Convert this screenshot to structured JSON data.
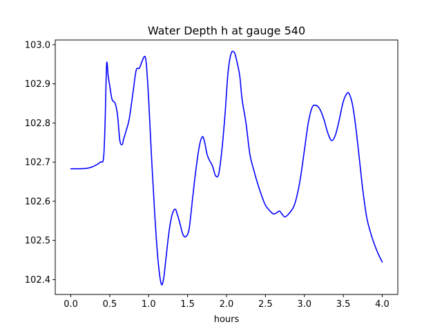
{
  "chart_data": {
    "type": "line",
    "title": "Water Depth h at gauge 540",
    "xlabel": "hours",
    "ylabel": "",
    "xlim": [
      -0.2,
      4.2
    ],
    "ylim": [
      102.362,
      103.012
    ],
    "x_ticks": [
      0.0,
      0.5,
      1.0,
      1.5,
      2.0,
      2.5,
      3.0,
      3.5,
      4.0
    ],
    "x_tick_labels": [
      "0.0",
      "0.5",
      "1.0",
      "1.5",
      "2.0",
      "2.5",
      "3.0",
      "3.5",
      "4.0"
    ],
    "y_ticks": [
      102.4,
      102.5,
      102.6,
      102.7,
      102.8,
      102.9,
      103.0
    ],
    "y_tick_labels": [
      "102.4",
      "102.5",
      "102.6",
      "102.7",
      "102.8",
      "102.9",
      "103.0"
    ],
    "grid": false,
    "series": [
      {
        "color": "#0000ff",
        "x": [
          0.0,
          0.2,
          0.3,
          0.38,
          0.42,
          0.44,
          0.46,
          0.48,
          0.5,
          0.53,
          0.57,
          0.6,
          0.63,
          0.66,
          0.68,
          0.71,
          0.75,
          0.8,
          0.84,
          0.88,
          0.92,
          0.95,
          0.97,
          1.0,
          1.04,
          1.08,
          1.12,
          1.16,
          1.19,
          1.22,
          1.26,
          1.3,
          1.34,
          1.37,
          1.4,
          1.44,
          1.48,
          1.52,
          1.56,
          1.6,
          1.65,
          1.69,
          1.72,
          1.75,
          1.78,
          1.82,
          1.86,
          1.9,
          1.94,
          1.98,
          2.02,
          2.06,
          2.1,
          2.13,
          2.17,
          2.2,
          2.25,
          2.3,
          2.35,
          2.4,
          2.45,
          2.5,
          2.56,
          2.6,
          2.64,
          2.68,
          2.71,
          2.75,
          2.8,
          2.86,
          2.9,
          2.95,
          3.0,
          3.05,
          3.1,
          3.15,
          3.2,
          3.25,
          3.3,
          3.35,
          3.4,
          3.45,
          3.5,
          3.55,
          3.58,
          3.62,
          3.66,
          3.7,
          3.75,
          3.8,
          3.85,
          3.9,
          3.95,
          4.0
        ],
        "y": [
          102.683,
          102.684,
          102.69,
          102.7,
          102.71,
          102.8,
          102.95,
          102.92,
          102.895,
          102.86,
          102.85,
          102.82,
          102.755,
          102.745,
          102.76,
          102.78,
          102.81,
          102.88,
          102.935,
          102.94,
          102.96,
          102.97,
          102.95,
          102.86,
          102.7,
          102.56,
          102.45,
          102.39,
          102.4,
          102.45,
          102.52,
          102.565,
          102.58,
          102.565,
          102.545,
          102.515,
          102.51,
          102.53,
          102.6,
          102.67,
          102.74,
          102.765,
          102.75,
          102.72,
          102.705,
          102.69,
          102.665,
          102.67,
          102.73,
          102.82,
          102.93,
          102.978,
          102.98,
          102.96,
          102.92,
          102.86,
          102.8,
          102.72,
          102.68,
          102.645,
          102.615,
          102.59,
          102.575,
          102.568,
          102.57,
          102.575,
          102.568,
          102.56,
          102.568,
          102.585,
          102.61,
          102.66,
          102.73,
          102.8,
          102.84,
          102.845,
          102.835,
          102.81,
          102.775,
          102.755,
          102.77,
          102.81,
          102.855,
          102.876,
          102.873,
          102.845,
          102.79,
          102.72,
          102.63,
          102.56,
          102.52,
          102.49,
          102.465,
          102.445
        ]
      }
    ]
  }
}
